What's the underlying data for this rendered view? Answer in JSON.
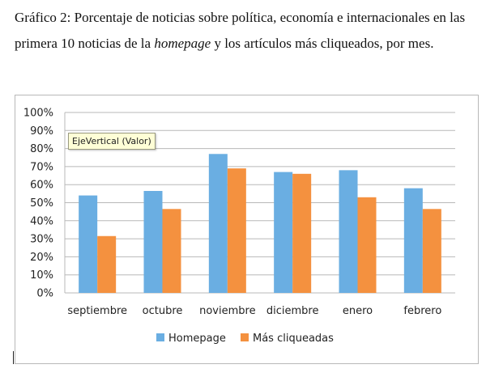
{
  "caption": {
    "part1": "Gráfico 2: Porcentaje de noticias sobre política, economía e internacionales en las primera 10 noticias de la ",
    "italic": "homepage",
    "part2": " y los artículos más cliqueados, por mes."
  },
  "tooltip": "EjeVertical (Valor)",
  "colors": {
    "homepage": "#6aaee2",
    "cliqueadas": "#f4913f",
    "grid": "#b8b8b8"
  },
  "chart_data": {
    "type": "bar",
    "categories": [
      "septiembre",
      "octubre",
      "noviembre",
      "diciembre",
      "enero",
      "febrero"
    ],
    "series": [
      {
        "name": "Homepage",
        "values": [
          54,
          56.5,
          77,
          67,
          68,
          58
        ]
      },
      {
        "name": "Más cliqueadas",
        "values": [
          31.5,
          46.5,
          69,
          66,
          53,
          46.5
        ]
      }
    ],
    "y_ticks": [
      "0%",
      "10%",
      "20%",
      "30%",
      "40%",
      "50%",
      "60%",
      "70%",
      "80%",
      "90%",
      "100%"
    ],
    "ylim": [
      0,
      100
    ],
    "grid": true,
    "legend": "bottom"
  }
}
